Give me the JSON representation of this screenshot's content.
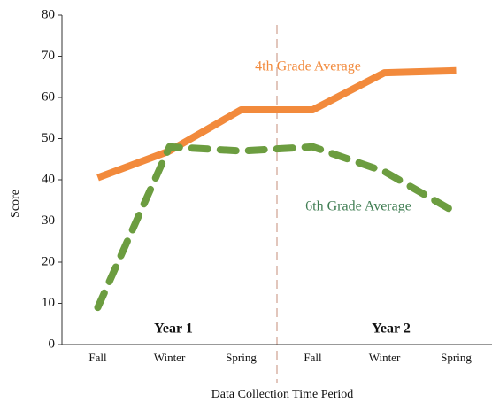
{
  "chart_data": {
    "type": "line",
    "x_label": "Data Collection Time Period",
    "y_label": "Score",
    "categories": [
      "Fall",
      "Winter",
      "Spring",
      "Fall",
      "Winter",
      "Spring"
    ],
    "series": [
      {
        "name": "4th Grade Average",
        "color": "#f28a3c",
        "dashed": false,
        "values": [
          40.5,
          47,
          57,
          57,
          66,
          66.5
        ]
      },
      {
        "name": "6th Grade Average",
        "color": "#6c9d40",
        "label_color": "#3f7d52",
        "dashed": true,
        "values": [
          9,
          48,
          47,
          48,
          42,
          32
        ]
      }
    ],
    "annotations": [
      "Year 1",
      "Year 2"
    ],
    "ylim": [
      0,
      80
    ],
    "yticks": [
      0,
      10,
      20,
      30,
      40,
      50,
      60,
      70,
      80
    ],
    "grid": false
  }
}
